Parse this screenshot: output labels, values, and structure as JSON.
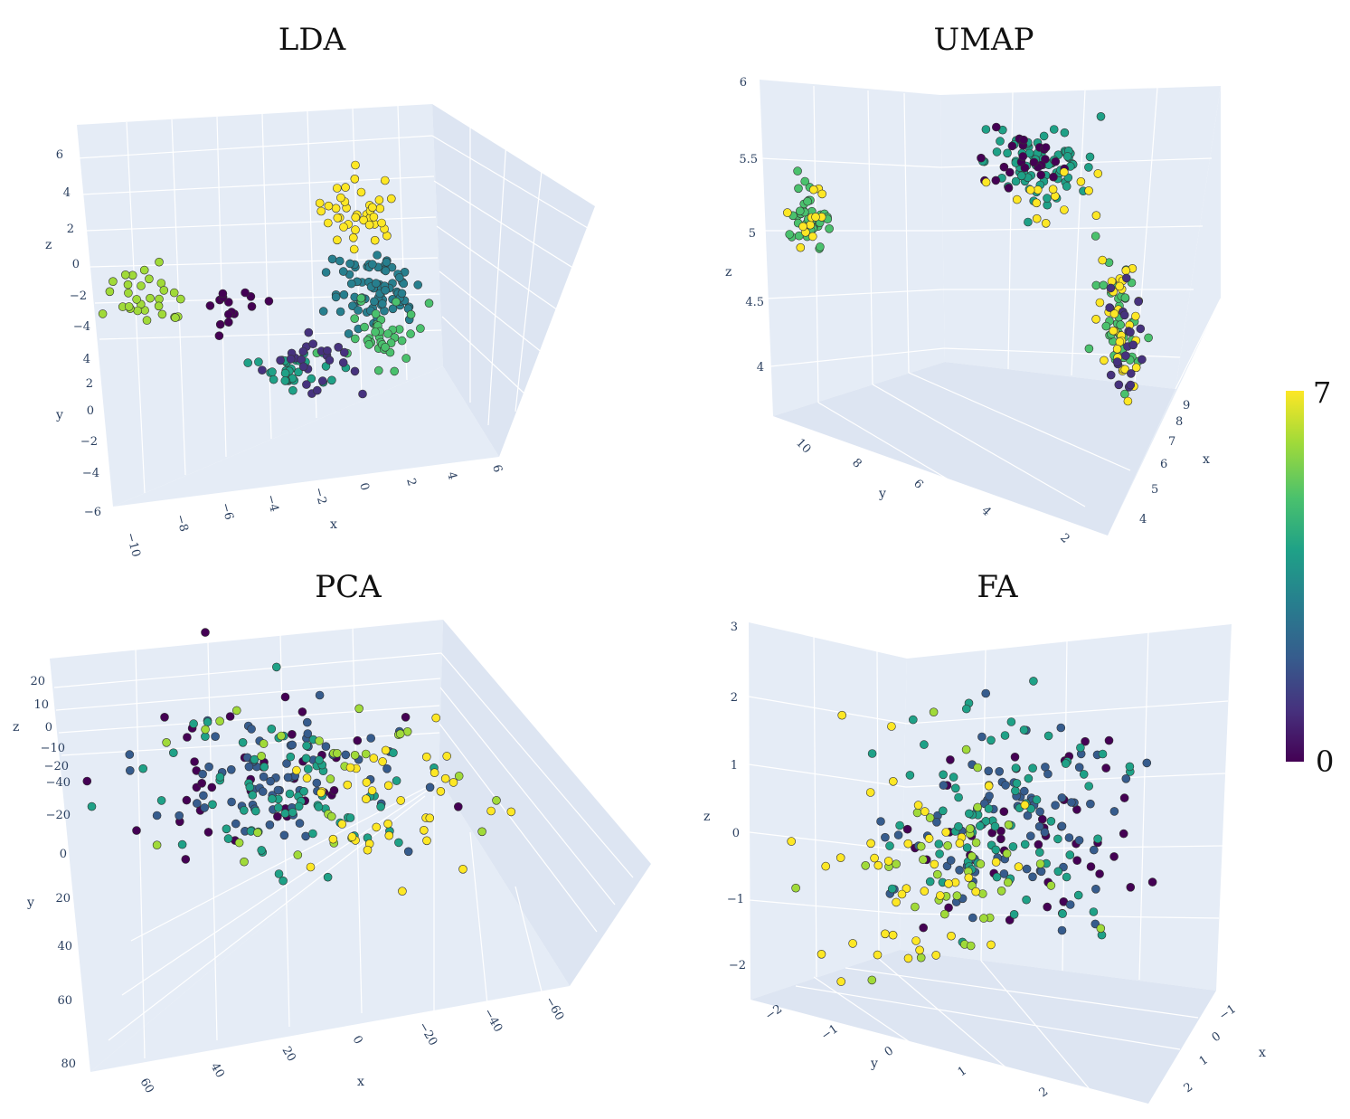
{
  "colorbar": {
    "max_label": "7",
    "min_label": "0",
    "colors": [
      "#440154",
      "#46327e",
      "#365c8d",
      "#277f8e",
      "#1fa187",
      "#4ac16d",
      "#a0da39",
      "#fde725"
    ]
  },
  "chart_data": [
    {
      "type": "scatter",
      "title": "LDA",
      "xlabel": "x",
      "ylabel": "y",
      "zlabel": "z",
      "xticks": [
        "−10",
        "−8",
        "−6",
        "−4",
        "−2",
        "0",
        "2",
        "4",
        "6"
      ],
      "yticks": [
        "4",
        "2",
        "0",
        "−2",
        "−4",
        "−6"
      ],
      "zticks": [
        "6",
        "4",
        "2",
        "0",
        "−2",
        "−4"
      ],
      "clusters": [
        {
          "class": 7,
          "center": [
            400,
            235
          ],
          "spread": [
            45,
            40
          ],
          "n": 40
        },
        {
          "class": 6,
          "center": [
            160,
            325
          ],
          "spread": [
            45,
            35
          ],
          "n": 30
        },
        {
          "class": 0,
          "center": [
            255,
            340
          ],
          "spread": [
            40,
            25
          ],
          "n": 15
        },
        {
          "class": 3,
          "center": [
            415,
            320
          ],
          "spread": [
            50,
            45
          ],
          "n": 80
        },
        {
          "class": 5,
          "center": [
            420,
            370
          ],
          "spread": [
            40,
            35
          ],
          "n": 40
        },
        {
          "class": 4,
          "center": [
            320,
            410
          ],
          "spread": [
            45,
            25
          ],
          "n": 30
        },
        {
          "class": 1,
          "center": [
            355,
            405
          ],
          "spread": [
            45,
            35
          ],
          "n": 25
        }
      ]
    },
    {
      "type": "scatter",
      "title": "UMAP",
      "xlabel": "x",
      "ylabel": "y",
      "zlabel": "z",
      "xticks": [
        "9",
        "8",
        "7",
        "6",
        "5",
        "4"
      ],
      "yticks": [
        "10",
        "8",
        "6",
        "4",
        "2"
      ],
      "zticks": [
        "6",
        "5.5",
        "5",
        "4.5",
        "4"
      ],
      "clusters": [
        {
          "class": 5,
          "center": [
            895,
            240
          ],
          "spread": [
            25,
            30
          ],
          "n": 35
        },
        {
          "class": 7,
          "center": [
            895,
            240
          ],
          "spread": [
            30,
            35
          ],
          "n": 12
        },
        {
          "class": 4,
          "center": [
            1150,
            180
          ],
          "spread": [
            60,
            40
          ],
          "n": 80
        },
        {
          "class": 0,
          "center": [
            1130,
            170
          ],
          "spread": [
            60,
            40
          ],
          "n": 25
        },
        {
          "class": 7,
          "center": [
            1170,
            215
          ],
          "spread": [
            60,
            30
          ],
          "n": 15
        },
        {
          "class": 5,
          "center": [
            1240,
            350
          ],
          "spread": [
            25,
            70
          ],
          "n": 40
        },
        {
          "class": 7,
          "center": [
            1240,
            360
          ],
          "spread": [
            25,
            70
          ],
          "n": 35
        },
        {
          "class": 1,
          "center": [
            1245,
            380
          ],
          "spread": [
            25,
            60
          ],
          "n": 20
        }
      ]
    },
    {
      "type": "scatter",
      "title": "PCA",
      "xlabel": "x",
      "ylabel": "y",
      "zlabel": "z",
      "xticks": [
        "60",
        "40",
        "20",
        "0",
        "−20",
        "−40",
        "−60"
      ],
      "yticks": [
        "−20",
        "0",
        "20",
        "40",
        "60",
        "80"
      ],
      "zticks": [
        "20",
        "10",
        "0",
        "−10",
        "−20",
        "−40"
      ],
      "clusters": [
        {
          "class": 0,
          "center": [
            270,
            860
          ],
          "spread": [
            150,
            80
          ],
          "n": 40
        },
        {
          "class": 2,
          "center": [
            300,
            850
          ],
          "spread": [
            150,
            90
          ],
          "n": 70
        },
        {
          "class": 4,
          "center": [
            320,
            880
          ],
          "spread": [
            150,
            100
          ],
          "n": 70
        },
        {
          "class": 6,
          "center": [
            370,
            880
          ],
          "spread": [
            150,
            100
          ],
          "n": 30
        },
        {
          "class": 7,
          "center": [
            400,
            880
          ],
          "spread": [
            140,
            90
          ],
          "n": 40
        }
      ]
    },
    {
      "type": "scatter",
      "title": "FA",
      "xlabel": "x",
      "ylabel": "y",
      "zlabel": "z",
      "xticks": [
        "−1",
        "0",
        "1",
        "2"
      ],
      "yticks": [
        "−2",
        "−1",
        "0",
        "1",
        "2"
      ],
      "zticks": [
        "3",
        "2",
        "1",
        "0",
        "−1",
        "−2"
      ],
      "clusters": [
        {
          "class": 0,
          "center": [
            1130,
            920
          ],
          "spread": [
            130,
            110
          ],
          "n": 45
        },
        {
          "class": 2,
          "center": [
            1120,
            900
          ],
          "spread": [
            130,
            120
          ],
          "n": 80
        },
        {
          "class": 4,
          "center": [
            1110,
            910
          ],
          "spread": [
            130,
            120
          ],
          "n": 80
        },
        {
          "class": 6,
          "center": [
            1060,
            960
          ],
          "spread": [
            120,
            110
          ],
          "n": 40
        },
        {
          "class": 7,
          "center": [
            1020,
            960
          ],
          "spread": [
            130,
            120
          ],
          "n": 45
        }
      ]
    }
  ]
}
